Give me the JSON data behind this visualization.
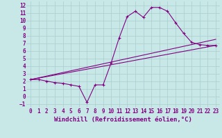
{
  "background_color": "#c8e8e8",
  "grid_color": "#aacccc",
  "line_color": "#800080",
  "xlabel": "Windchill (Refroidissement éolien,°C)",
  "xlabel_fontsize": 6.5,
  "tick_fontsize": 5.5,
  "xlim": [
    -0.5,
    23.5
  ],
  "ylim": [
    -1.5,
    12.5
  ],
  "xticks": [
    0,
    1,
    2,
    3,
    4,
    5,
    6,
    7,
    8,
    9,
    10,
    11,
    12,
    13,
    14,
    15,
    16,
    17,
    18,
    19,
    20,
    21,
    22,
    23
  ],
  "yticks": [
    -1,
    0,
    1,
    2,
    3,
    4,
    5,
    6,
    7,
    8,
    9,
    10,
    11,
    12
  ],
  "series1_x": [
    0,
    1,
    2,
    3,
    4,
    5,
    6,
    7,
    8,
    9,
    10,
    11,
    12,
    13,
    14,
    15,
    16,
    17,
    18,
    19,
    20,
    21,
    22,
    23
  ],
  "series1_y": [
    2.2,
    2.2,
    2.0,
    1.8,
    1.7,
    1.5,
    1.3,
    -0.8,
    1.5,
    1.5,
    4.4,
    7.7,
    10.5,
    11.2,
    10.4,
    11.7,
    11.7,
    11.2,
    9.7,
    8.3,
    7.1,
    6.8,
    6.7,
    6.7
  ],
  "series2_x": [
    0,
    23
  ],
  "series2_y": [
    2.2,
    6.7
  ],
  "series3_x": [
    0,
    23
  ],
  "series3_y": [
    2.2,
    7.5
  ]
}
